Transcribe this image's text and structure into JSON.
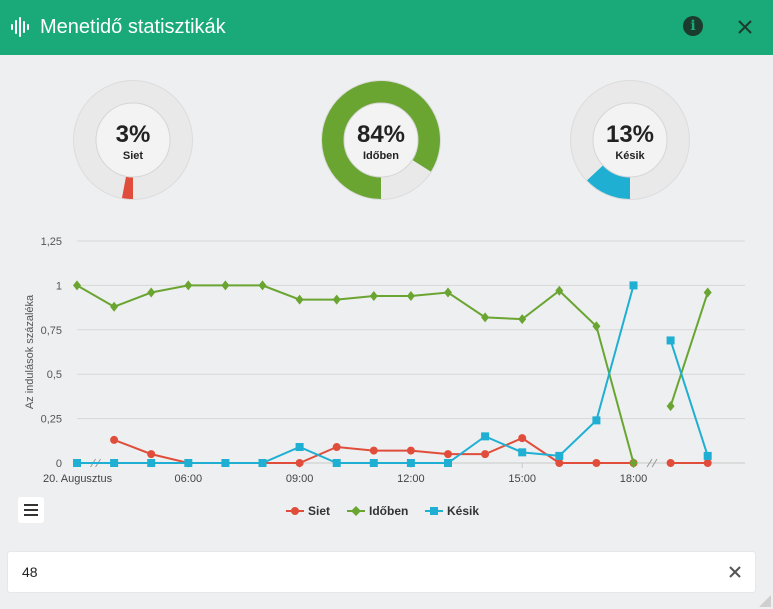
{
  "title": "Menetidő statisztikák",
  "icons": {
    "title": "audio-waveform-icon",
    "info": "info-icon",
    "close": "close-icon",
    "menu": "hamburger-menu-icon",
    "clear": "clear-icon"
  },
  "gauges": [
    {
      "value": 3,
      "percent_label": "3%",
      "label": "Siet",
      "color": "#e04e3b"
    },
    {
      "value": 84,
      "percent_label": "84%",
      "label": "Időben",
      "color": "#6aa532"
    },
    {
      "value": 13,
      "percent_label": "13%",
      "label": "Késik",
      "color": "#1fafd3"
    }
  ],
  "chart_data": {
    "type": "line",
    "ylabel": "Az indulások százaléka",
    "ylim": [
      0,
      1.25
    ],
    "y_ticks": [
      "0",
      "0,25",
      "0,5",
      "0,75",
      "1",
      "1,25"
    ],
    "y_tick_values": [
      0,
      0.25,
      0.5,
      0.75,
      1,
      1.25
    ],
    "x_tick_labels": [
      "20. Augusztus",
      "06:00",
      "09:00",
      "12:00",
      "15:00",
      "18:00"
    ],
    "x_tick_index": [
      0,
      3,
      6,
      9,
      12,
      15
    ],
    "categories": [
      "",
      "",
      "",
      "",
      "",
      "",
      "",
      "",
      "",
      "",
      "",
      "",
      "",
      "",
      "",
      "",
      "",
      ""
    ],
    "series": [
      {
        "name": "Siet",
        "color": "#e04e3b",
        "marker": "circle",
        "values": [
          null,
          0.13,
          0.05,
          0,
          0,
          0,
          0,
          0.09,
          0.07,
          0.07,
          0.05,
          0.05,
          0.14,
          0,
          0,
          0,
          0,
          0
        ]
      },
      {
        "name": "Időben",
        "color": "#6aa532",
        "marker": "diamond",
        "values": [
          1,
          0.88,
          0.96,
          1,
          1,
          1,
          0.92,
          0.92,
          0.94,
          0.94,
          0.96,
          0.82,
          0.81,
          0.97,
          0.77,
          0,
          0.32,
          0.96
        ]
      },
      {
        "name": "Késik",
        "color": "#1fafd3",
        "marker": "square",
        "values": [
          0,
          0,
          0,
          0,
          0,
          0,
          0.09,
          0,
          0,
          0,
          0,
          0.15,
          0.06,
          0.04,
          0.24,
          1,
          0.69,
          0.04
        ]
      }
    ],
    "grid": true,
    "legend_position": "bottom"
  },
  "search": {
    "value": "48"
  }
}
